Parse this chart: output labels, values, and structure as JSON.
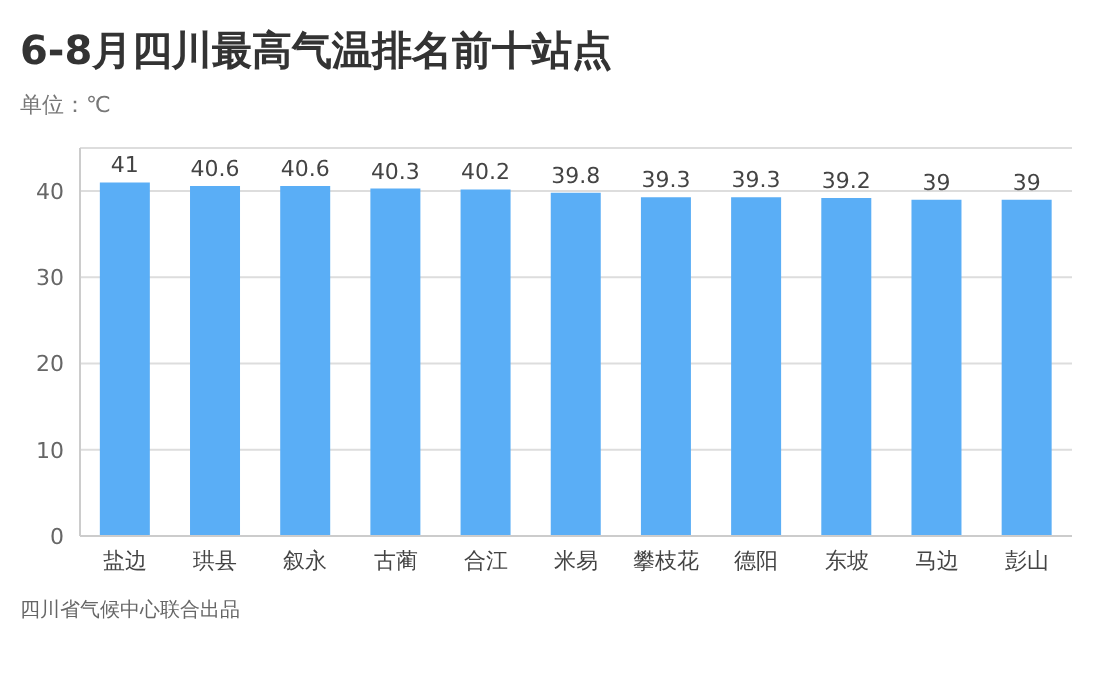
{
  "chart_data": {
    "type": "bar",
    "title": "6-8月四川最高气温排名前十站点",
    "subtitle": "单位：℃",
    "categories": [
      "盐边",
      "珙县",
      "叙永",
      "古蔺",
      "合江",
      "米易",
      "攀枝花",
      "德阳",
      "东坡",
      "马边",
      "彭山"
    ],
    "values": [
      41,
      40.6,
      40.6,
      40.3,
      40.2,
      39.8,
      39.3,
      39.3,
      39.2,
      39,
      39
    ],
    "color": "#5aaef6",
    "ylim": [
      0,
      45
    ],
    "yticks": [
      0,
      10,
      20,
      30,
      40
    ],
    "grid": "y",
    "data_labels": true,
    "annotations": [
      "四川省气候中心联合出品"
    ]
  }
}
